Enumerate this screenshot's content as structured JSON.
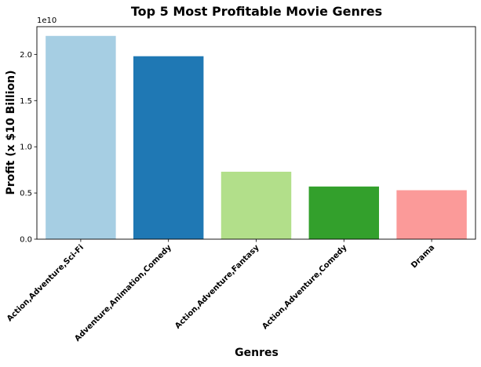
{
  "chart_data": {
    "type": "bar",
    "title": "Top 5 Most Profitable Movie Genres",
    "xlabel": "Genres",
    "ylabel": "Profit (x $10 Billion)",
    "offset_label": "1e10",
    "categories": [
      "Action,Adventure,Sci-Fi",
      "Adventure,Animation,Comedy",
      "Action,Adventure,Fantasy",
      "Action,Adventure,Comedy",
      "Drama"
    ],
    "values": [
      2.2,
      1.98,
      0.73,
      0.57,
      0.53
    ],
    "value_scale": 10000000000.0,
    "colors": [
      "#a6cee3",
      "#1f78b4",
      "#b2df8a",
      "#33a02c",
      "#fb9a99"
    ],
    "ylim": [
      0,
      2.3
    ],
    "yticks": [
      0.0,
      0.5,
      1.0,
      1.5,
      2.0
    ],
    "ytick_labels": [
      "0.0",
      "0.5",
      "1.0",
      "1.5",
      "2.0"
    ],
    "grid": false,
    "legend": "none"
  }
}
